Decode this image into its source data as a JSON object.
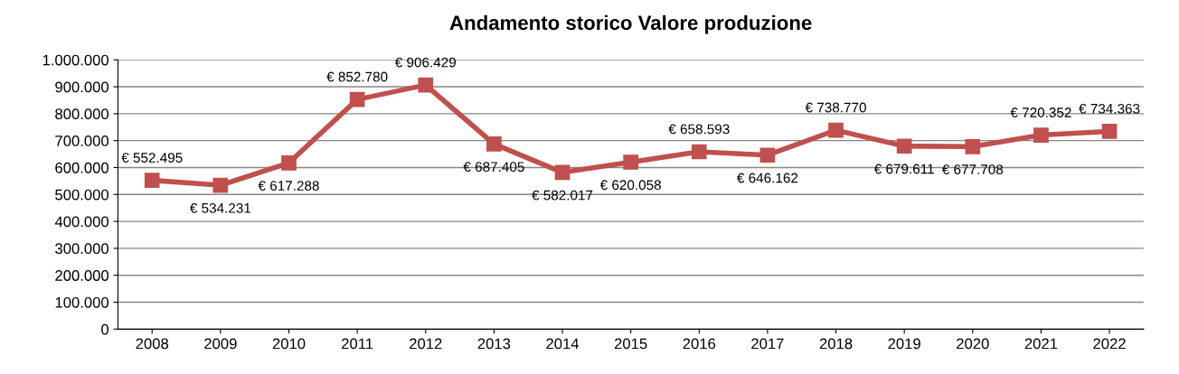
{
  "chart_data": {
    "type": "line",
    "title": "Andamento storico Valore produzione",
    "categories": [
      "2008",
      "2009",
      "2010",
      "2011",
      "2012",
      "2013",
      "2014",
      "2015",
      "2016",
      "2017",
      "2018",
      "2019",
      "2020",
      "2021",
      "2022"
    ],
    "series": [
      {
        "color": "#c0504d",
        "values": [
          552495,
          534231,
          617288,
          852780,
          906429,
          687405,
          582017,
          620058,
          658593,
          646162,
          738770,
          679611,
          677708,
          720352,
          734363
        ],
        "value_labels": [
          "€ 552.495",
          "€ 534.231",
          "€ 617.288",
          "€ 852.780",
          "€ 906.429",
          "€ 687.405",
          "€ 582.017",
          "€ 620.058",
          "€ 658.593",
          "€ 646.162",
          "€ 738.770",
          "€ 679.611",
          "€ 677.708",
          "€ 720.352",
          "€ 734.363"
        ]
      }
    ],
    "ylim": [
      0,
      1000000
    ],
    "yticks": [
      {
        "value": 0,
        "label": "0"
      },
      {
        "value": 100000,
        "label": "100.000"
      },
      {
        "value": 200000,
        "label": "200.000"
      },
      {
        "value": 300000,
        "label": "300.000"
      },
      {
        "value": 400000,
        "label": "400.000"
      },
      {
        "value": 500000,
        "label": "500.000"
      },
      {
        "value": 600000,
        "label": "600.000"
      },
      {
        "value": 700000,
        "label": "700.000"
      },
      {
        "value": 800000,
        "label": "800.000"
      },
      {
        "value": 900000,
        "label": "900.000"
      },
      {
        "value": 1000000,
        "label": "1.000.000"
      }
    ],
    "grid": "y",
    "marker": "square",
    "line_style": "solid"
  }
}
